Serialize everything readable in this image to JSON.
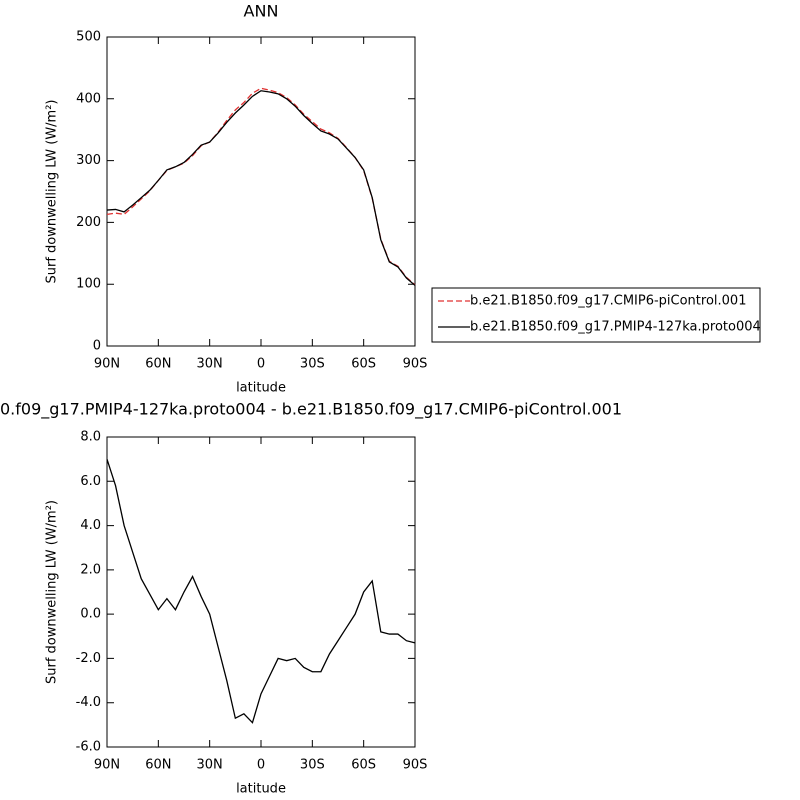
{
  "chart_data": [
    {
      "type": "line",
      "title": "ANN",
      "xlabel": "latitude",
      "ylabel": "Surf downwelling LW (W/m²)",
      "x": [
        90,
        85,
        80,
        75,
        70,
        65,
        60,
        55,
        50,
        45,
        40,
        35,
        30,
        25,
        20,
        15,
        10,
        5,
        0,
        -5,
        -10,
        -15,
        -20,
        -25,
        -30,
        -35,
        -40,
        -45,
        -50,
        -55,
        -60,
        -65,
        -70,
        -75,
        -80,
        -85,
        -90
      ],
      "series": [
        {
          "name": "b.e21.B1850.f09_g17.CMIP6-piControl.001",
          "color": "#e03030",
          "dashed": true,
          "values": [
            213,
            215,
            213,
            225,
            238,
            251,
            268,
            284,
            290,
            296,
            308,
            324,
            330,
            346,
            365,
            382,
            394,
            409,
            417,
            414,
            410,
            402,
            390,
            375,
            363,
            351,
            345,
            336,
            321,
            305,
            284,
            239,
            173,
            137,
            129,
            111,
            99
          ]
        },
        {
          "name": "b.e21.B1850.f09_g17.PMIP4-127ka.proto004",
          "color": "#000000",
          "dashed": false,
          "values": [
            220,
            221,
            217,
            228,
            240,
            252,
            268,
            285,
            290,
            297,
            310,
            325,
            330,
            345,
            362,
            377,
            390,
            404,
            413,
            411,
            408,
            400,
            388,
            373,
            360,
            348,
            343,
            335,
            320,
            305,
            285,
            240,
            172,
            136,
            128,
            110,
            98
          ]
        }
      ],
      "xlim": [
        90,
        -90
      ],
      "xticks": [
        {
          "value": 90,
          "label": "90N"
        },
        {
          "value": 60,
          "label": "60N"
        },
        {
          "value": 30,
          "label": "30N"
        },
        0,
        {
          "value": -30,
          "label": "30S"
        },
        {
          "value": -60,
          "label": "60S"
        },
        {
          "value": -90,
          "label": "90S"
        }
      ],
      "ylim": [
        0,
        500
      ],
      "yticks": [
        0,
        100,
        200,
        300,
        400,
        500
      ],
      "legend": "right"
    },
    {
      "type": "line",
      "title": "0.f09_g17.PMIP4-127ka.proto004 - b.e21.B1850.f09_g17.CMIP6-piControl.001",
      "xlabel": "latitude",
      "ylabel": "Surf downwelling LW (W/m²)",
      "x": [
        90,
        85,
        80,
        75,
        70,
        65,
        60,
        55,
        50,
        45,
        40,
        35,
        30,
        25,
        20,
        15,
        10,
        5,
        0,
        -5,
        -10,
        -15,
        -20,
        -25,
        -30,
        -35,
        -40,
        -45,
        -50,
        -55,
        -60,
        -65,
        -70,
        -75,
        -80,
        -85,
        -90
      ],
      "series": [
        {
          "color": "#000000",
          "dashed": false,
          "values": [
            7.0,
            5.8,
            4.0,
            2.8,
            1.6,
            0.9,
            0.2,
            0.7,
            0.2,
            1.0,
            1.7,
            0.8,
            0.0,
            -1.5,
            -3.0,
            -4.7,
            -4.5,
            -4.9,
            -3.6,
            -2.8,
            -2.0,
            -2.1,
            -2.0,
            -2.4,
            -2.6,
            -2.6,
            -1.8,
            -1.2,
            -0.6,
            0.0,
            1.0,
            1.5,
            -0.8,
            -0.9,
            -0.9,
            -1.2,
            -1.3
          ]
        }
      ],
      "xlim": [
        90,
        -90
      ],
      "xticks": [
        {
          "value": 90,
          "label": "90N"
        },
        {
          "value": 60,
          "label": "60N"
        },
        {
          "value": 30,
          "label": "30N"
        },
        0,
        {
          "value": -30,
          "label": "30S"
        },
        {
          "value": -60,
          "label": "60S"
        },
        {
          "value": -90,
          "label": "90S"
        }
      ],
      "ylim": [
        -6,
        8
      ],
      "yticks": [
        {
          "value": -6,
          "label": "-6.0"
        },
        {
          "value": -4,
          "label": "-4.0"
        },
        {
          "value": -2,
          "label": "-2.0"
        },
        {
          "value": 0,
          "label": "0.0"
        },
        {
          "value": 2,
          "label": "2.0"
        },
        {
          "value": 4,
          "label": "4.0"
        },
        {
          "value": 6,
          "label": "6.0"
        },
        {
          "value": 8,
          "label": "8.0"
        }
      ]
    }
  ]
}
